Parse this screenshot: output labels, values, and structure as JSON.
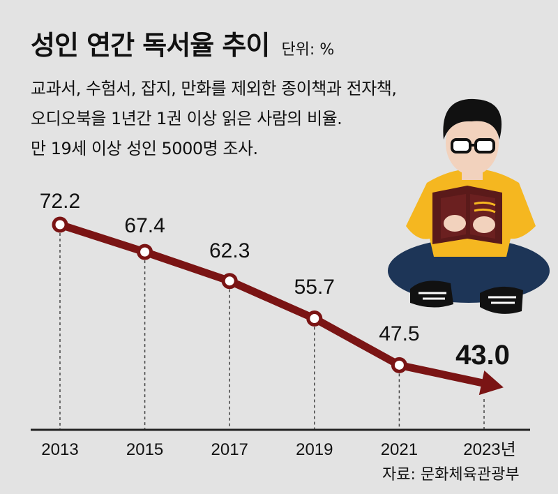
{
  "header": {
    "title": "성인 연간 독서율 추이",
    "unit": "단위: %",
    "subtitle_lines": [
      "교과서, 수험서, 잡지, 만화를 제외한 종이책과 전자책,",
      "오디오북을 1년간 1권 이상 읽은 사람의 비율.",
      "만 19세 이상 성인 5000명 조사."
    ]
  },
  "source": "자료: 문화체육관광부",
  "colors": {
    "background": "#e3e3e3",
    "line": "#7a1414",
    "marker_fill": "#ffffff",
    "axis": "#222222"
  },
  "chart_data": {
    "type": "line",
    "title": "성인 연간 독서율 추이",
    "unit": "%",
    "x": [
      "2013",
      "2015",
      "2017",
      "2019",
      "2021",
      "2023년"
    ],
    "values": [
      72.2,
      67.4,
      62.3,
      55.7,
      47.5,
      43.0
    ],
    "value_labels": [
      "72.2",
      "67.4",
      "62.3",
      "55.7",
      "47.5",
      "43.0"
    ],
    "last_point_style": "arrow",
    "ylim": [
      30,
      80
    ],
    "grid": false
  }
}
